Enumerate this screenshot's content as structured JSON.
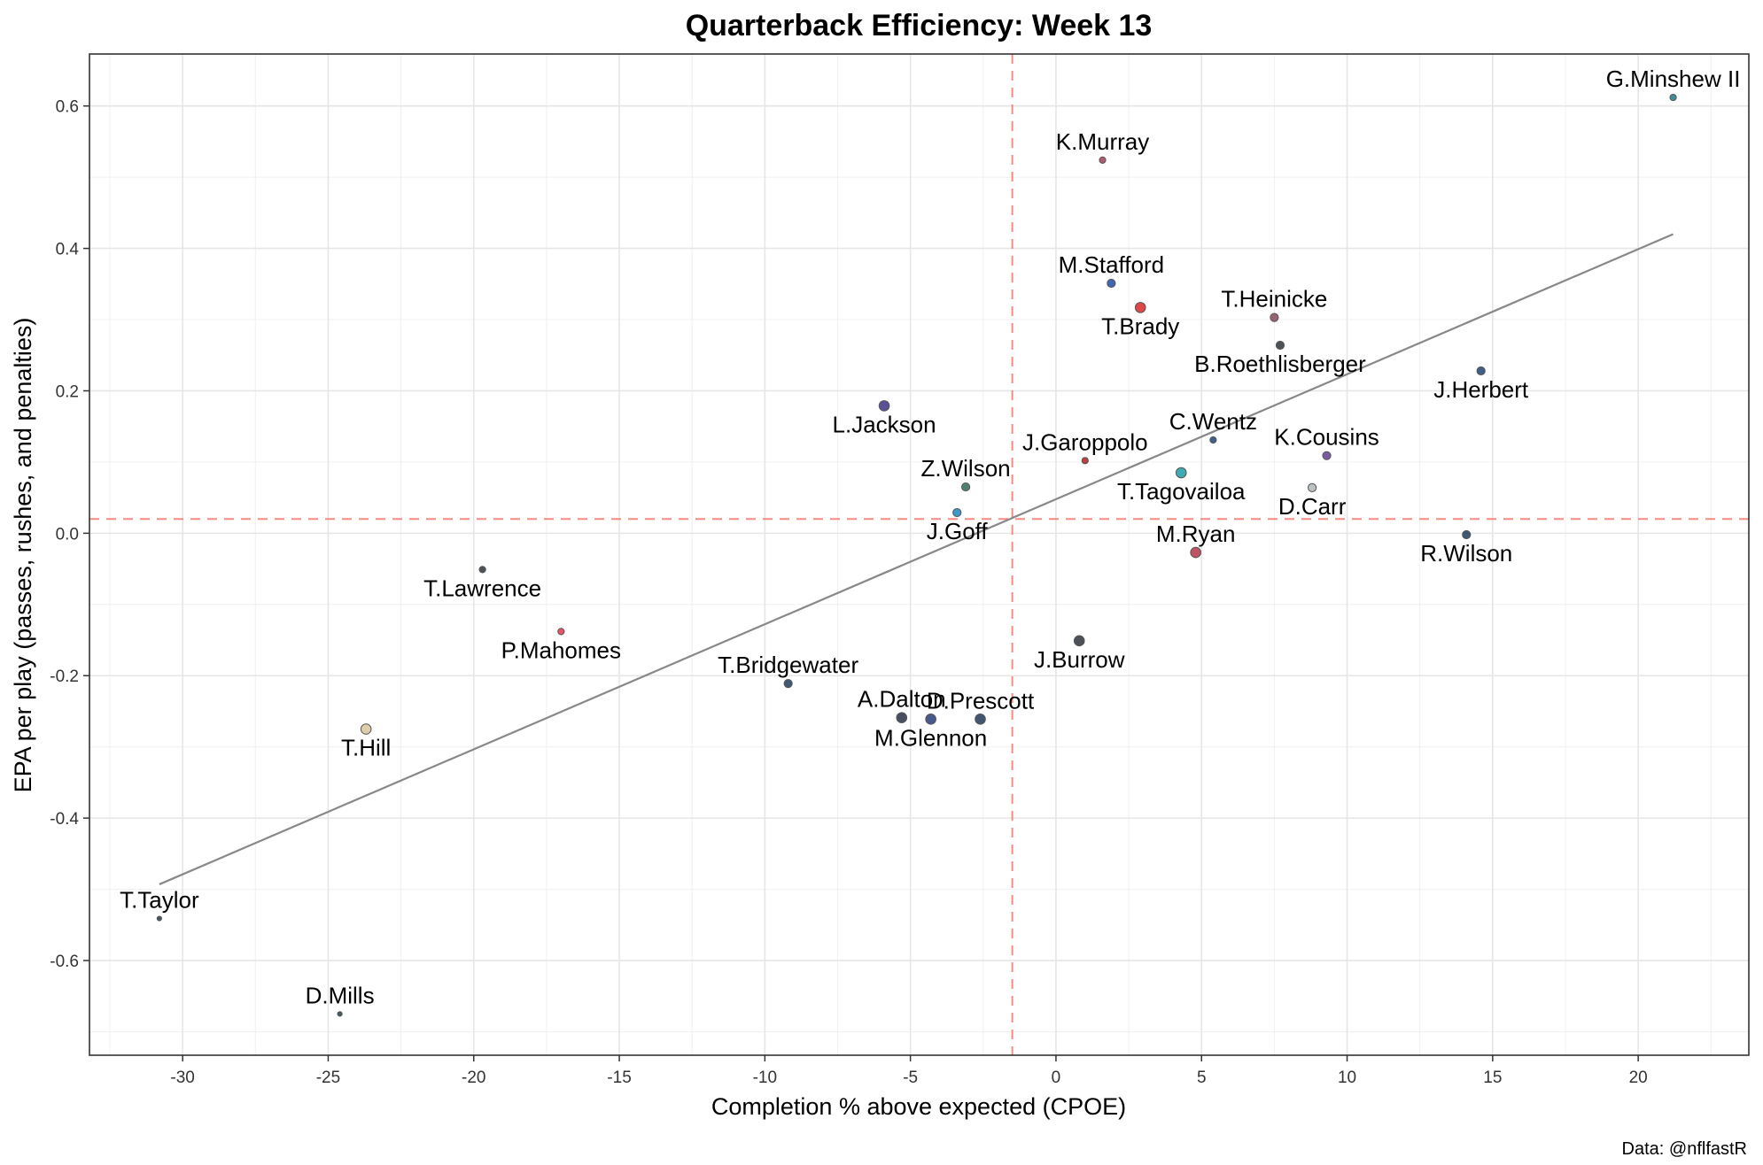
{
  "chart_data": {
    "type": "scatter",
    "title": "Quarterback Efficiency: Week 13",
    "xlabel": "Completion % above expected (CPOE)",
    "ylabel": "EPA per play (passes, rushes, and penalties)",
    "caption": "Data: @nflfastR",
    "xlim": [
      -33.2,
      23.8
    ],
    "ylim": [
      -0.733,
      0.673
    ],
    "x_ticks": [
      -30,
      -25,
      -20,
      -15,
      -10,
      -5,
      0,
      5,
      10,
      15,
      20
    ],
    "y_ticks": [
      -0.6,
      -0.4,
      -0.2,
      0.0,
      0.2,
      0.4,
      0.6
    ],
    "x_tick_labels": [
      "-30",
      "-25",
      "-20",
      "-15",
      "-10",
      "-5",
      "0",
      "5",
      "10",
      "15",
      "20"
    ],
    "y_tick_labels": [
      "-0.6",
      "-0.4",
      "-0.2",
      "0.0",
      "0.2",
      "0.4",
      "0.6"
    ],
    "reference_lines": {
      "vertical_x": -1.5,
      "horizontal_y": 0.02,
      "color": "#F8766D"
    },
    "trend_line": {
      "x": [
        -30.8,
        21.2
      ],
      "y": [
        -0.493,
        0.42
      ],
      "color": "#888888"
    },
    "grid": true,
    "points": [
      {
        "name": "G.Minshew II",
        "x": 21.2,
        "y": 0.612,
        "color": "#006778",
        "size": "small",
        "label_pos": "above"
      },
      {
        "name": "K.Murray",
        "x": 1.6,
        "y": 0.524,
        "color": "#97233F",
        "size": "small",
        "label_pos": "above"
      },
      {
        "name": "M.Stafford",
        "x": 1.9,
        "y": 0.351,
        "color": "#003594",
        "size": "medium",
        "label_pos": "above"
      },
      {
        "name": "T.Brady",
        "x": 2.9,
        "y": 0.317,
        "color": "#D50A0A",
        "size": "large",
        "label_pos": "below"
      },
      {
        "name": "T.Heinicke",
        "x": 7.5,
        "y": 0.303,
        "color": "#773141",
        "size": "medium",
        "label_pos": "above"
      },
      {
        "name": "B.Roethlisberger",
        "x": 7.7,
        "y": 0.264,
        "color": "#101820",
        "size": "medium",
        "label_pos": "below"
      },
      {
        "name": "J.Herbert",
        "x": 14.6,
        "y": 0.228,
        "color": "#002A5E",
        "size": "medium",
        "label_pos": "below"
      },
      {
        "name": "L.Jackson",
        "x": -5.9,
        "y": 0.179,
        "color": "#241773",
        "size": "large",
        "label_pos": "below"
      },
      {
        "name": "C.Wentz",
        "x": 5.4,
        "y": 0.131,
        "color": "#002C5F",
        "size": "small",
        "label_pos": "above"
      },
      {
        "name": "K.Cousins",
        "x": 9.3,
        "y": 0.109,
        "color": "#4F2683",
        "size": "medium",
        "label_pos": "above"
      },
      {
        "name": "J.Garoppolo",
        "x": 1.0,
        "y": 0.102,
        "color": "#AA0000",
        "size": "small",
        "label_pos": "above"
      },
      {
        "name": "T.Tagovailoa",
        "x": 4.3,
        "y": 0.085,
        "color": "#008E97",
        "size": "large",
        "label_pos": "below"
      },
      {
        "name": "Z.Wilson",
        "x": -3.1,
        "y": 0.065,
        "color": "#125740",
        "size": "medium",
        "label_pos": "above"
      },
      {
        "name": "D.Carr",
        "x": 8.8,
        "y": 0.064,
        "color": "#A5ACAF",
        "size": "medium",
        "label_pos": "below"
      },
      {
        "name": "J.Goff",
        "x": -3.4,
        "y": 0.029,
        "color": "#0076B6",
        "size": "medium",
        "label_pos": "below"
      },
      {
        "name": "R.Wilson",
        "x": 14.1,
        "y": -0.002,
        "color": "#002244",
        "size": "medium",
        "label_pos": "below"
      },
      {
        "name": "M.Ryan",
        "x": 4.8,
        "y": -0.027,
        "color": "#A71930",
        "size": "large",
        "label_pos": "above"
      },
      {
        "name": "T.Lawrence",
        "x": -19.7,
        "y": -0.051,
        "color": "#101820",
        "size": "small",
        "label_pos": "below"
      },
      {
        "name": "P.Mahomes",
        "x": -17.0,
        "y": -0.138,
        "color": "#E31837",
        "size": "small",
        "label_pos": "below"
      },
      {
        "name": "J.Burrow",
        "x": 0.8,
        "y": -0.151,
        "color": "#101820",
        "size": "large",
        "label_pos": "below"
      },
      {
        "name": "T.Bridgewater",
        "x": -9.2,
        "y": -0.211,
        "color": "#002244",
        "size": "medium",
        "label_pos": "above"
      },
      {
        "name": "A.Dalton",
        "x": -5.3,
        "y": -0.259,
        "color": "#0B162A",
        "size": "large",
        "label_pos": "above"
      },
      {
        "name": "M.Glennon",
        "x": -4.3,
        "y": -0.261,
        "color": "#0B2265",
        "size": "large",
        "label_pos": "below"
      },
      {
        "name": "D.Prescott",
        "x": -2.6,
        "y": -0.261,
        "color": "#041E42",
        "size": "large",
        "label_pos": "above"
      },
      {
        "name": "T.Hill",
        "x": -23.7,
        "y": -0.275,
        "color": "#D3BC8D",
        "size": "large",
        "label_pos": "below"
      },
      {
        "name": "T.Taylor",
        "x": -30.8,
        "y": -0.541,
        "color": "#03202F",
        "size": "tiny",
        "label_pos": "above"
      },
      {
        "name": "D.Mills",
        "x": -24.6,
        "y": -0.675,
        "color": "#03202F",
        "size": "tiny",
        "label_pos": "above"
      }
    ]
  }
}
